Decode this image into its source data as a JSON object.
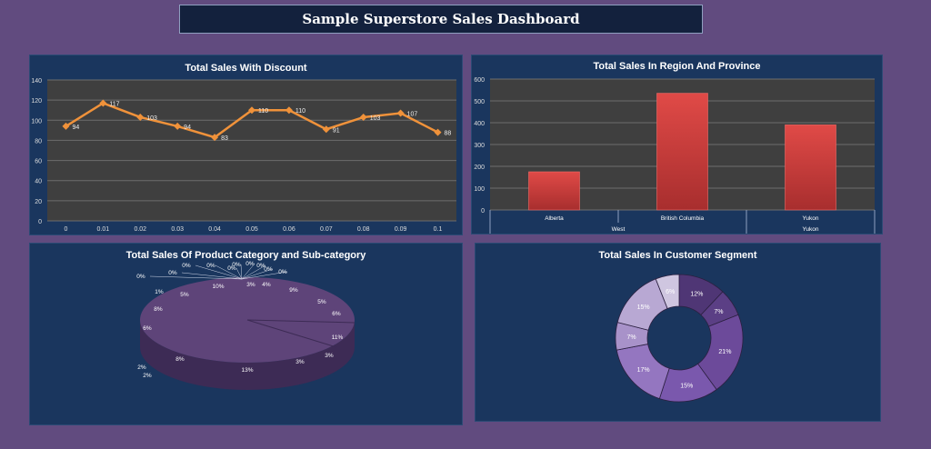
{
  "header": {
    "title": "Sample Superstore Sales Dashboard"
  },
  "chart_data": [
    {
      "type": "line",
      "title": "Total Sales With Discount",
      "categories": [
        "0",
        "0.01",
        "0.02",
        "0.03",
        "0.04",
        "0.05",
        "0.06",
        "0.07",
        "0.08",
        "0.09",
        "0.1"
      ],
      "values": [
        94,
        117,
        103,
        94,
        83,
        110,
        110,
        91,
        103,
        107,
        88
      ],
      "ylim": [
        0,
        140
      ],
      "yticks": [
        0,
        20,
        40,
        60,
        80,
        100,
        120,
        140
      ],
      "grid": true,
      "colors": {
        "line": "#f0923a",
        "plot_bg": "#3f3f3f"
      }
    },
    {
      "type": "bar",
      "title": "Total Sales In Region And Province",
      "categories": [
        "Alberta",
        "British Columbia",
        "Yukon"
      ],
      "groups": [
        {
          "label": "West",
          "span": 2
        },
        {
          "label": "Yukon",
          "span": 1
        }
      ],
      "values": [
        175,
        535,
        390
      ],
      "ylim": [
        0,
        600
      ],
      "yticks": [
        0,
        100,
        200,
        300,
        400,
        500,
        600
      ],
      "grid": true,
      "colors": {
        "bar": "#d94442",
        "plot_bg": "#3f3f3f"
      }
    },
    {
      "type": "pie",
      "title": "Total Sales Of Product Category and Sub-category",
      "style": "3d",
      "labels": [
        "0%",
        "0%",
        "0%",
        "0%",
        "0%",
        "0%",
        "0%",
        "0%",
        "0%",
        "0%",
        "3%",
        "4%",
        "9%",
        "5%",
        "6%",
        "11%",
        "3%",
        "3%",
        "13%",
        "8%",
        "2%",
        "2%",
        "6%",
        "8%",
        "1%",
        "5%",
        "10%"
      ],
      "colors": {
        "slice": "#5e4479"
      }
    },
    {
      "type": "pie",
      "title": "Total Sales In Customer Segment",
      "style": "donut",
      "values": [
        12,
        7,
        21,
        15,
        17,
        7,
        15,
        6
      ],
      "labels": [
        "12%",
        "7%",
        "21%",
        "15%",
        "17%",
        "7%",
        "15%",
        "6%"
      ],
      "colors": [
        "#4f3675",
        "#5b3f85",
        "#6c4a9a",
        "#7a58ad",
        "#9476c0",
        "#a892c9",
        "#b8a8d3",
        "#cfc6e0"
      ]
    }
  ]
}
